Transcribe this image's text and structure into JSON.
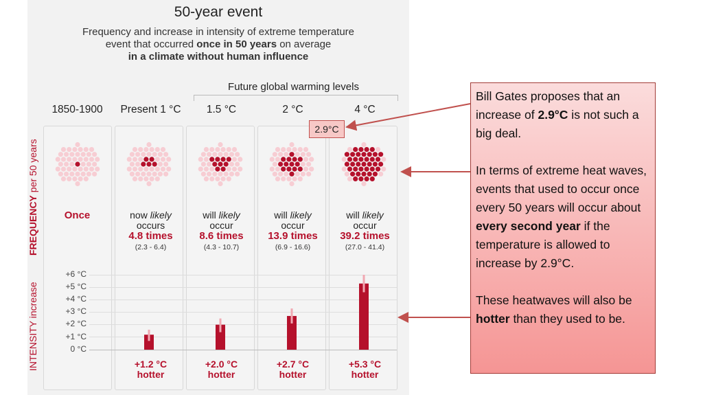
{
  "title": "50-year event",
  "subtitle": {
    "line1": "Frequency and increase in intensity of extreme temperature",
    "line2_pre": "event that occurred ",
    "line2_bold": "once in 50 years",
    "line2_post": " on average",
    "line3": "in a climate without human influence"
  },
  "future_label": "Future global warming levels",
  "freq_axis": {
    "main": "FREQUENCY",
    "sub": "per 50 years"
  },
  "intensity_axis": "INTENSITY increase",
  "callout": "2.9°C",
  "colors": {
    "accent": "#b5112c",
    "dot_light": "#f7cdd3",
    "dot_dark": "#b5112c",
    "note_border": "#a23b36"
  },
  "chart_data": {
    "type": "bar",
    "title": "50-year event",
    "categories": [
      "1850-1900",
      "Present 1 °C",
      "1.5 °C",
      "2 °C",
      "4 °C"
    ],
    "frequency": {
      "labels": [
        "Once",
        "now likely occurs",
        "will likely occur",
        "will likely occur",
        "will likely occur"
      ],
      "pre": [
        "",
        "now ",
        "will ",
        "will ",
        "will "
      ],
      "em": [
        "",
        "likely",
        "likely",
        "likely",
        "likely"
      ],
      "verb": [
        "",
        "occurs",
        "occur",
        "occur",
        "occur"
      ],
      "times_text": [
        "",
        "4.8 times",
        "8.6 times",
        "13.9 times",
        "39.2 times"
      ],
      "range_text": [
        "",
        "(2.3 - 6.4)",
        "(4.3 - 10.7)",
        "(6.9 - 16.6)",
        "(27.0 - 41.4)"
      ],
      "values": [
        1,
        4.8,
        8.6,
        13.9,
        39.2
      ]
    },
    "intensity": {
      "values": [
        0,
        1.2,
        2.0,
        2.7,
        5.3
      ],
      "err_low": [
        0,
        0.7,
        1.4,
        2.1,
        4.6
      ],
      "err_high": [
        0,
        1.6,
        2.5,
        3.3,
        6.0
      ],
      "labels": [
        "",
        "+1.2 °C",
        "+2.0 °C",
        "+2.7 °C",
        "+5.3 °C"
      ],
      "suffix": "hotter",
      "ylim": [
        0,
        6
      ],
      "ticks": [
        "+6 °C",
        "+5 °C",
        "+4 °C",
        "+3 °C",
        "+2 °C",
        "+1 °C",
        "0 °C"
      ]
    }
  },
  "note": {
    "p1_a": "Bill Gates proposes that an increase of ",
    "p1_b": "2.9°C",
    "p1_c": " is not such a big deal.",
    "p2_a": "In terms of extreme heat waves, events that used to occur once every 50 years will occur about ",
    "p2_b": "every second year",
    "p2_c": " if the temperature is allowed to increase by 2.9°C.",
    "p3_a": "These heatwaves will also be ",
    "p3_b": "hotter",
    "p3_c": " than they used to be."
  }
}
